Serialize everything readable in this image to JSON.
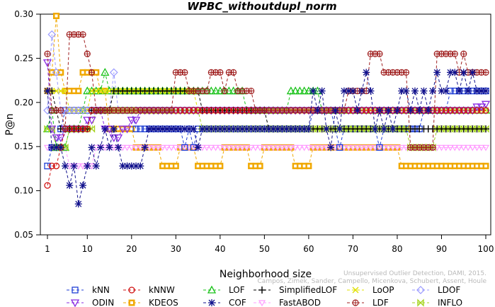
{
  "chart_data": {
    "type": "line",
    "title": "WPBC_withoutdupl_norm",
    "xlabel": "Neighborhood size",
    "ylabel": "P@n",
    "xlim": [
      1,
      100
    ],
    "ylim": [
      0.05,
      0.3
    ],
    "xticks": [
      "1",
      "10",
      "20",
      "30",
      "40",
      "50",
      "60",
      "70",
      "80",
      "90",
      "100"
    ],
    "yticks": [
      "0.05",
      "0.10",
      "0.15",
      "0.20",
      "0.25",
      "0.30"
    ],
    "grid": false,
    "legend_position": "bottom",
    "series": [
      {
        "name": "kNN",
        "color": "#1f3fd6",
        "marker": "square",
        "points": [
          [
            1,
            0.128
          ],
          [
            2,
            0.149
          ],
          [
            3,
            0.149
          ],
          [
            4,
            0.17
          ],
          [
            5,
            0.191
          ],
          [
            10,
            0.191
          ],
          [
            20,
            0.191
          ],
          [
            21,
            0.17
          ],
          [
            30,
            0.17
          ],
          [
            32,
            0.149
          ],
          [
            33,
            0.17
          ],
          [
            34,
            0.149
          ],
          [
            35,
            0.17
          ],
          [
            60,
            0.17
          ],
          [
            61,
            0.191
          ],
          [
            65,
            0.191
          ],
          [
            66,
            0.17
          ],
          [
            67,
            0.149
          ],
          [
            68,
            0.17
          ],
          [
            75,
            0.17
          ],
          [
            76,
            0.149
          ],
          [
            77,
            0.17
          ],
          [
            85,
            0.17
          ],
          [
            86,
            0.191
          ],
          [
            91,
            0.191
          ],
          [
            92,
            0.213
          ],
          [
            100,
            0.213
          ]
        ]
      },
      {
        "name": "kNNW",
        "color": "#d01010",
        "marker": "circle",
        "points": [
          [
            1,
            0.106
          ],
          [
            2,
            0.128
          ],
          [
            3,
            0.128
          ],
          [
            4,
            0.149
          ],
          [
            5,
            0.17
          ],
          [
            10,
            0.17
          ],
          [
            11,
            0.191
          ],
          [
            100,
            0.191
          ]
        ]
      },
      {
        "name": "LOF",
        "color": "#19c219",
        "marker": "triangle",
        "points": [
          [
            1,
            0.17
          ],
          [
            2,
            0.191
          ],
          [
            3,
            0.149
          ],
          [
            4,
            0.149
          ],
          [
            5,
            0.149
          ],
          [
            6,
            0.17
          ],
          [
            9,
            0.191
          ],
          [
            10,
            0.213
          ],
          [
            13,
            0.213
          ],
          [
            14,
            0.234
          ],
          [
            15,
            0.213
          ],
          [
            40,
            0.213
          ],
          [
            45,
            0.213
          ],
          [
            46,
            0.191
          ],
          [
            55,
            0.191
          ],
          [
            56,
            0.213
          ],
          [
            62,
            0.213
          ],
          [
            63,
            0.191
          ],
          [
            100,
            0.191
          ]
        ]
      },
      {
        "name": "SimplifiedLOF",
        "color": "#000000",
        "marker": "plus",
        "points": [
          [
            1,
            0.213
          ],
          [
            2,
            0.213
          ],
          [
            3,
            0.191
          ],
          [
            4,
            0.17
          ],
          [
            10,
            0.17
          ],
          [
            11,
            0.191
          ],
          [
            15,
            0.191
          ],
          [
            16,
            0.213
          ],
          [
            35,
            0.213
          ],
          [
            36,
            0.191
          ],
          [
            50,
            0.191
          ],
          [
            51,
            0.17
          ],
          [
            85,
            0.17
          ],
          [
            86,
            0.17
          ],
          [
            100,
            0.17
          ]
        ]
      },
      {
        "name": "LoOP",
        "color": "#e0e000",
        "marker": "cross",
        "points": [
          [
            1,
            0.213
          ],
          [
            5,
            0.213
          ],
          [
            6,
            0.191
          ],
          [
            10,
            0.191
          ],
          [
            11,
            0.213
          ],
          [
            34,
            0.213
          ],
          [
            35,
            0.191
          ],
          [
            100,
            0.191
          ]
        ]
      },
      {
        "name": "LDOF",
        "color": "#9a9aff",
        "marker": "diamond",
        "points": [
          [
            1,
            0.191
          ],
          [
            2,
            0.277
          ],
          [
            3,
            0.234
          ],
          [
            4,
            0.191
          ],
          [
            15,
            0.191
          ],
          [
            16,
            0.234
          ],
          [
            17,
            0.191
          ],
          [
            100,
            0.191
          ]
        ]
      },
      {
        "name": "ODIN",
        "color": "#8a2be2",
        "marker": "invtriangle",
        "points": [
          [
            1,
            0.245
          ],
          [
            2,
            0.17
          ],
          [
            3,
            0.16
          ],
          [
            4,
            0.16
          ],
          [
            5,
            0.17
          ],
          [
            10,
            0.18
          ],
          [
            12,
            0.191
          ],
          [
            14,
            0.17
          ],
          [
            16,
            0.16
          ],
          [
            18,
            0.17
          ],
          [
            20,
            0.18
          ],
          [
            22,
            0.191
          ],
          [
            96,
            0.191
          ],
          [
            98,
            0.195
          ],
          [
            100,
            0.198
          ]
        ]
      },
      {
        "name": "KDEOS",
        "color": "#f0a800",
        "marker": "filledsquare",
        "points": [
          [
            1,
            0.213
          ],
          [
            2,
            0.234
          ],
          [
            3,
            0.298
          ],
          [
            4,
            0.234
          ],
          [
            5,
            0.213
          ],
          [
            6,
            0.213
          ],
          [
            8,
            0.213
          ],
          [
            9,
            0.234
          ],
          [
            13,
            0.213
          ],
          [
            15,
            0.17
          ],
          [
            20,
            0.17
          ],
          [
            21,
            0.149
          ],
          [
            26,
            0.149
          ],
          [
            27,
            0.128
          ],
          [
            30,
            0.128
          ],
          [
            31,
            0.149
          ],
          [
            34,
            0.149
          ],
          [
            35,
            0.128
          ],
          [
            40,
            0.128
          ],
          [
            41,
            0.149
          ],
          [
            46,
            0.149
          ],
          [
            47,
            0.128
          ],
          [
            49,
            0.128
          ],
          [
            50,
            0.149
          ],
          [
            56,
            0.149
          ],
          [
            57,
            0.128
          ],
          [
            60,
            0.128
          ],
          [
            61,
            0.149
          ],
          [
            80,
            0.149
          ],
          [
            81,
            0.128
          ],
          [
            85,
            0.128
          ],
          [
            86,
            0.128
          ],
          [
            100,
            0.128
          ]
        ]
      },
      {
        "name": "COF",
        "color": "#10108c",
        "marker": "asterisk",
        "points": [
          [
            1,
            0.213
          ],
          [
            2,
            0.149
          ],
          [
            3,
            0.149
          ],
          [
            4,
            0.149
          ],
          [
            5,
            0.128
          ],
          [
            6,
            0.106
          ],
          [
            7,
            0.128
          ],
          [
            8,
            0.085
          ],
          [
            9,
            0.106
          ],
          [
            10,
            0.128
          ],
          [
            11,
            0.149
          ],
          [
            12,
            0.128
          ],
          [
            13,
            0.149
          ],
          [
            14,
            0.17
          ],
          [
            15,
            0.149
          ],
          [
            16,
            0.17
          ],
          [
            17,
            0.149
          ],
          [
            18,
            0.128
          ],
          [
            22,
            0.128
          ],
          [
            23,
            0.149
          ],
          [
            24,
            0.17
          ],
          [
            34,
            0.17
          ],
          [
            35,
            0.149
          ],
          [
            36,
            0.17
          ],
          [
            60,
            0.17
          ],
          [
            61,
            0.213
          ],
          [
            62,
            0.191
          ],
          [
            63,
            0.213
          ],
          [
            64,
            0.17
          ],
          [
            65,
            0.149
          ],
          [
            66,
            0.191
          ],
          [
            67,
            0.17
          ],
          [
            68,
            0.213
          ],
          [
            70,
            0.213
          ],
          [
            71,
            0.191
          ],
          [
            72,
            0.213
          ],
          [
            73,
            0.234
          ],
          [
            74,
            0.213
          ],
          [
            75,
            0.17
          ],
          [
            76,
            0.191
          ],
          [
            77,
            0.17
          ],
          [
            78,
            0.191
          ],
          [
            79,
            0.17
          ],
          [
            80,
            0.191
          ],
          [
            81,
            0.213
          ],
          [
            82,
            0.213
          ],
          [
            83,
            0.191
          ],
          [
            84,
            0.213
          ],
          [
            85,
            0.191
          ],
          [
            86,
            0.213
          ],
          [
            87,
            0.191
          ],
          [
            88,
            0.213
          ],
          [
            89,
            0.234
          ],
          [
            90,
            0.213
          ],
          [
            91,
            0.213
          ],
          [
            92,
            0.234
          ],
          [
            93,
            0.234
          ],
          [
            94,
            0.213
          ],
          [
            95,
            0.234
          ],
          [
            96,
            0.213
          ],
          [
            97,
            0.234
          ],
          [
            98,
            0.213
          ],
          [
            99,
            0.213
          ],
          [
            100,
            0.213
          ]
        ]
      },
      {
        "name": "FastABOD",
        "color": "#ff9cff",
        "marker": "invtriangle2",
        "points": [
          [
            1,
            0.149
          ],
          [
            5,
            0.149
          ],
          [
            6,
            0.128
          ],
          [
            11,
            0.128
          ],
          [
            12,
            0.149
          ],
          [
            100,
            0.149
          ]
        ]
      },
      {
        "name": "LDF",
        "color": "#a02020",
        "marker": "circleplus",
        "points": [
          [
            1,
            0.255
          ],
          [
            2,
            0.191
          ],
          [
            4,
            0.191
          ],
          [
            5,
            0.17
          ],
          [
            6,
            0.277
          ],
          [
            9,
            0.277
          ],
          [
            10,
            0.255
          ],
          [
            11,
            0.234
          ],
          [
            12,
            0.191
          ],
          [
            29,
            0.191
          ],
          [
            30,
            0.234
          ],
          [
            32,
            0.234
          ],
          [
            33,
            0.213
          ],
          [
            37,
            0.213
          ],
          [
            38,
            0.234
          ],
          [
            40,
            0.234
          ],
          [
            41,
            0.213
          ],
          [
            42,
            0.234
          ],
          [
            43,
            0.234
          ],
          [
            44,
            0.213
          ],
          [
            47,
            0.213
          ],
          [
            48,
            0.191
          ],
          [
            68,
            0.191
          ],
          [
            69,
            0.213
          ],
          [
            73,
            0.213
          ],
          [
            74,
            0.255
          ],
          [
            76,
            0.255
          ],
          [
            77,
            0.234
          ],
          [
            82,
            0.234
          ],
          [
            83,
            0.149
          ],
          [
            88,
            0.149
          ],
          [
            89,
            0.255
          ],
          [
            93,
            0.255
          ],
          [
            94,
            0.234
          ],
          [
            95,
            0.255
          ],
          [
            96,
            0.234
          ],
          [
            100,
            0.234
          ]
        ]
      },
      {
        "name": "INFLO",
        "color": "#a4d31c",
        "marker": "bowtie",
        "points": [
          [
            1,
            0.17
          ],
          [
            3,
            0.149
          ],
          [
            5,
            0.149
          ],
          [
            6,
            0.17
          ],
          [
            11,
            0.17
          ],
          [
            12,
            0.191
          ],
          [
            35,
            0.191
          ],
          [
            36,
            0.17
          ],
          [
            82,
            0.17
          ],
          [
            83,
            0.149
          ],
          [
            88,
            0.149
          ],
          [
            89,
            0.17
          ],
          [
            100,
            0.17
          ]
        ]
      }
    ],
    "legend_rows": [
      [
        "kNN",
        "kNNW",
        "LOF",
        "SimplifiedLOF",
        "LoOP",
        "LDOF"
      ],
      [
        "ODIN",
        "KDEOS",
        "COF",
        "FastABOD",
        "LDF",
        "INFLO"
      ]
    ],
    "watermark": [
      "Unsupervised Outlier Detection, DAMI, 2015.",
      "Campos, Zimek, Sander, Campello, Micenkova, Schubert, Assent, Houle"
    ]
  }
}
